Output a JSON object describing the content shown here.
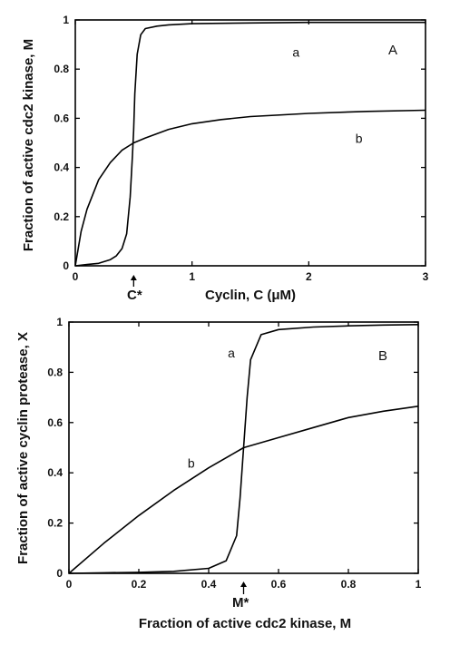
{
  "chart_data": [
    {
      "type": "line",
      "panel_label": "A",
      "xlabel": "Cyclin, C (μM)",
      "ylabel": "Fraction of active cdc2 kinase, M",
      "xlim": [
        0,
        3
      ],
      "ylim": [
        0,
        1
      ],
      "x_ticks": [
        "0",
        "1",
        "2",
        "3"
      ],
      "y_ticks": [
        "0",
        "0.2",
        "0.4",
        "0.6",
        "0.8",
        "1"
      ],
      "threshold_label": "C*",
      "threshold_x": 0.5,
      "series": [
        {
          "name": "a",
          "x": [
            0,
            0.1,
            0.2,
            0.3,
            0.35,
            0.4,
            0.44,
            0.47,
            0.49,
            0.5,
            0.51,
            0.53,
            0.56,
            0.6,
            0.7,
            0.8,
            1.0,
            1.5,
            2.0,
            2.5,
            3.0
          ],
          "y": [
            0,
            0.005,
            0.01,
            0.025,
            0.04,
            0.07,
            0.13,
            0.28,
            0.45,
            0.55,
            0.7,
            0.86,
            0.94,
            0.965,
            0.975,
            0.98,
            0.985,
            0.988,
            0.99,
            0.99,
            0.99
          ]
        },
        {
          "name": "b",
          "x": [
            0,
            0.05,
            0.1,
            0.2,
            0.3,
            0.4,
            0.5,
            0.6,
            0.8,
            1.0,
            1.25,
            1.5,
            2.0,
            2.5,
            3.0
          ],
          "y": [
            0,
            0.14,
            0.23,
            0.35,
            0.42,
            0.47,
            0.5,
            0.52,
            0.555,
            0.578,
            0.595,
            0.607,
            0.62,
            0.628,
            0.633
          ]
        }
      ]
    },
    {
      "type": "line",
      "panel_label": "B",
      "xlabel": "Fraction of active cdc2 kinase, M",
      "ylabel": "Fraction of active cyclin protease, X",
      "xlim": [
        0,
        1
      ],
      "ylim": [
        0,
        1
      ],
      "x_ticks": [
        "0",
        "0.2",
        "0.4",
        "0.6",
        "0.8",
        "1"
      ],
      "y_ticks": [
        "0",
        "0.2",
        "0.4",
        "0.6",
        "0.8",
        "1"
      ],
      "threshold_label": "M*",
      "threshold_x": 0.5,
      "series": [
        {
          "name": "a",
          "x": [
            0,
            0.1,
            0.2,
            0.3,
            0.4,
            0.45,
            0.48,
            0.49,
            0.5,
            0.51,
            0.52,
            0.55,
            0.6,
            0.7,
            0.8,
            0.9,
            1.0
          ],
          "y": [
            0,
            0.002,
            0.004,
            0.008,
            0.02,
            0.05,
            0.15,
            0.3,
            0.5,
            0.7,
            0.85,
            0.95,
            0.97,
            0.98,
            0.985,
            0.988,
            0.99
          ]
        },
        {
          "name": "b",
          "x": [
            0,
            0.1,
            0.2,
            0.3,
            0.4,
            0.5,
            0.6,
            0.7,
            0.8,
            0.9,
            1.0
          ],
          "y": [
            0,
            0.12,
            0.23,
            0.33,
            0.42,
            0.5,
            0.54,
            0.58,
            0.62,
            0.645,
            0.665
          ]
        }
      ]
    }
  ]
}
